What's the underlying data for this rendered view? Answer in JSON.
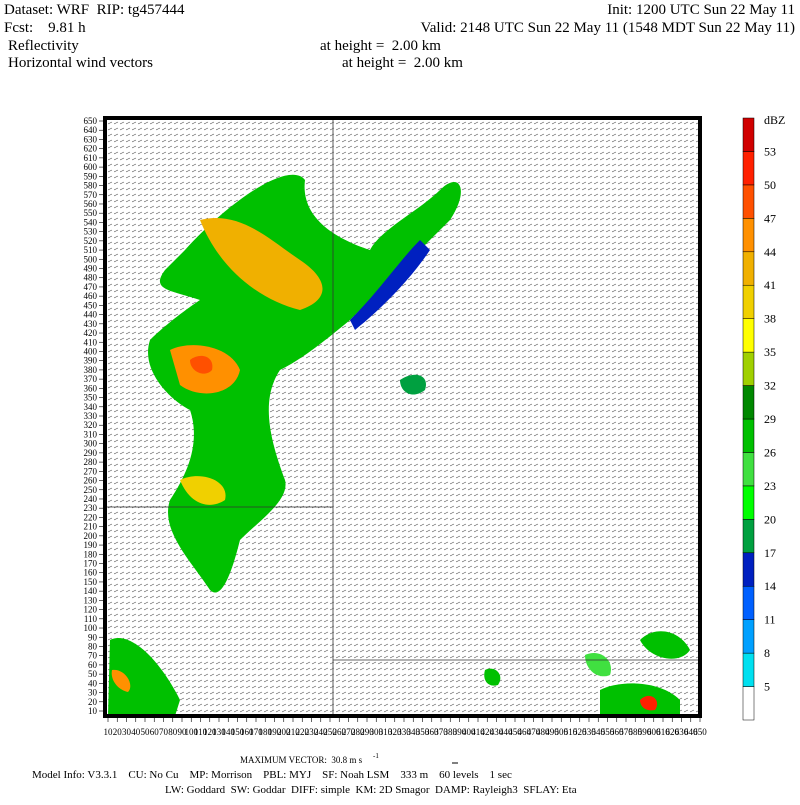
{
  "header": {
    "dataset": "Dataset: WRF  RIP: tg457444",
    "init": "Init: 1200 UTC Sun 22 May 11",
    "fcst": "Fcst:    9.81 h",
    "valid": "Valid: 2148 UTC Sun 22 May 11 (1548 MDT Sun 22 May 11)",
    "field1": "Reflectivity",
    "field1_level": "at height =  2.00 km",
    "field2": "Horizontal wind vectors",
    "field2_level": "at height =  2.00 km"
  },
  "chart_data": {
    "type": "map",
    "xlim": [
      10,
      650
    ],
    "ylim": [
      10,
      650
    ],
    "xticks": [
      10,
      20,
      30,
      40,
      50,
      60,
      70,
      80,
      90,
      100,
      110,
      120,
      130,
      140,
      150,
      160,
      170,
      180,
      190,
      200,
      210,
      220,
      230,
      240,
      250,
      260,
      270,
      280,
      290,
      300,
      310,
      320,
      330,
      340,
      350,
      360,
      370,
      380,
      390,
      400,
      410,
      420,
      430,
      440,
      450,
      460,
      470,
      480,
      490,
      500,
      510,
      520,
      530,
      540,
      550,
      560,
      570,
      580,
      590,
      600,
      610,
      620,
      630,
      640,
      650
    ],
    "yticks": [
      10,
      20,
      30,
      40,
      50,
      60,
      70,
      80,
      90,
      100,
      110,
      120,
      130,
      140,
      150,
      160,
      170,
      180,
      190,
      200,
      210,
      220,
      230,
      240,
      250,
      260,
      270,
      280,
      290,
      300,
      310,
      320,
      330,
      340,
      350,
      360,
      370,
      380,
      390,
      400,
      410,
      420,
      430,
      440,
      450,
      460,
      470,
      480,
      490,
      500,
      510,
      520,
      530,
      540,
      550,
      560,
      570,
      580,
      590,
      600,
      610,
      620,
      630,
      640,
      650
    ],
    "colorbar": {
      "unit": "dBZ",
      "levels": [
        5,
        8,
        11,
        14,
        17,
        20,
        23,
        26,
        29,
        32,
        35,
        38,
        41,
        44,
        47,
        50,
        53
      ],
      "colors": [
        "#ffffff",
        "#00e0f0",
        "#00a0ff",
        "#0060ff",
        "#0020c0",
        "#00a040",
        "#00ff00",
        "#40e040",
        "#00c000",
        "#008800",
        "#a0d000",
        "#ffff00",
        "#f0d000",
        "#f0b000",
        "#ff9000",
        "#ff5000",
        "#ff2000",
        "#d00000"
      ]
    }
  },
  "footer": {
    "max_vector": "MAXIMUM VECTOR:  30.8 m s",
    "max_vector_unit_exp": "-1",
    "model_info": "Model Info: V3.3.1    CU: No Cu    MP: Morrison    PBL: MYJ    SF: Noah LSM    333 m    60 levels    1 sec",
    "physics": "LW: Goddard  SW: Goddar  DIFF: simple  KM: 2D Smagor  DAMP: Rayleigh3  SFLAY: Eta"
  }
}
